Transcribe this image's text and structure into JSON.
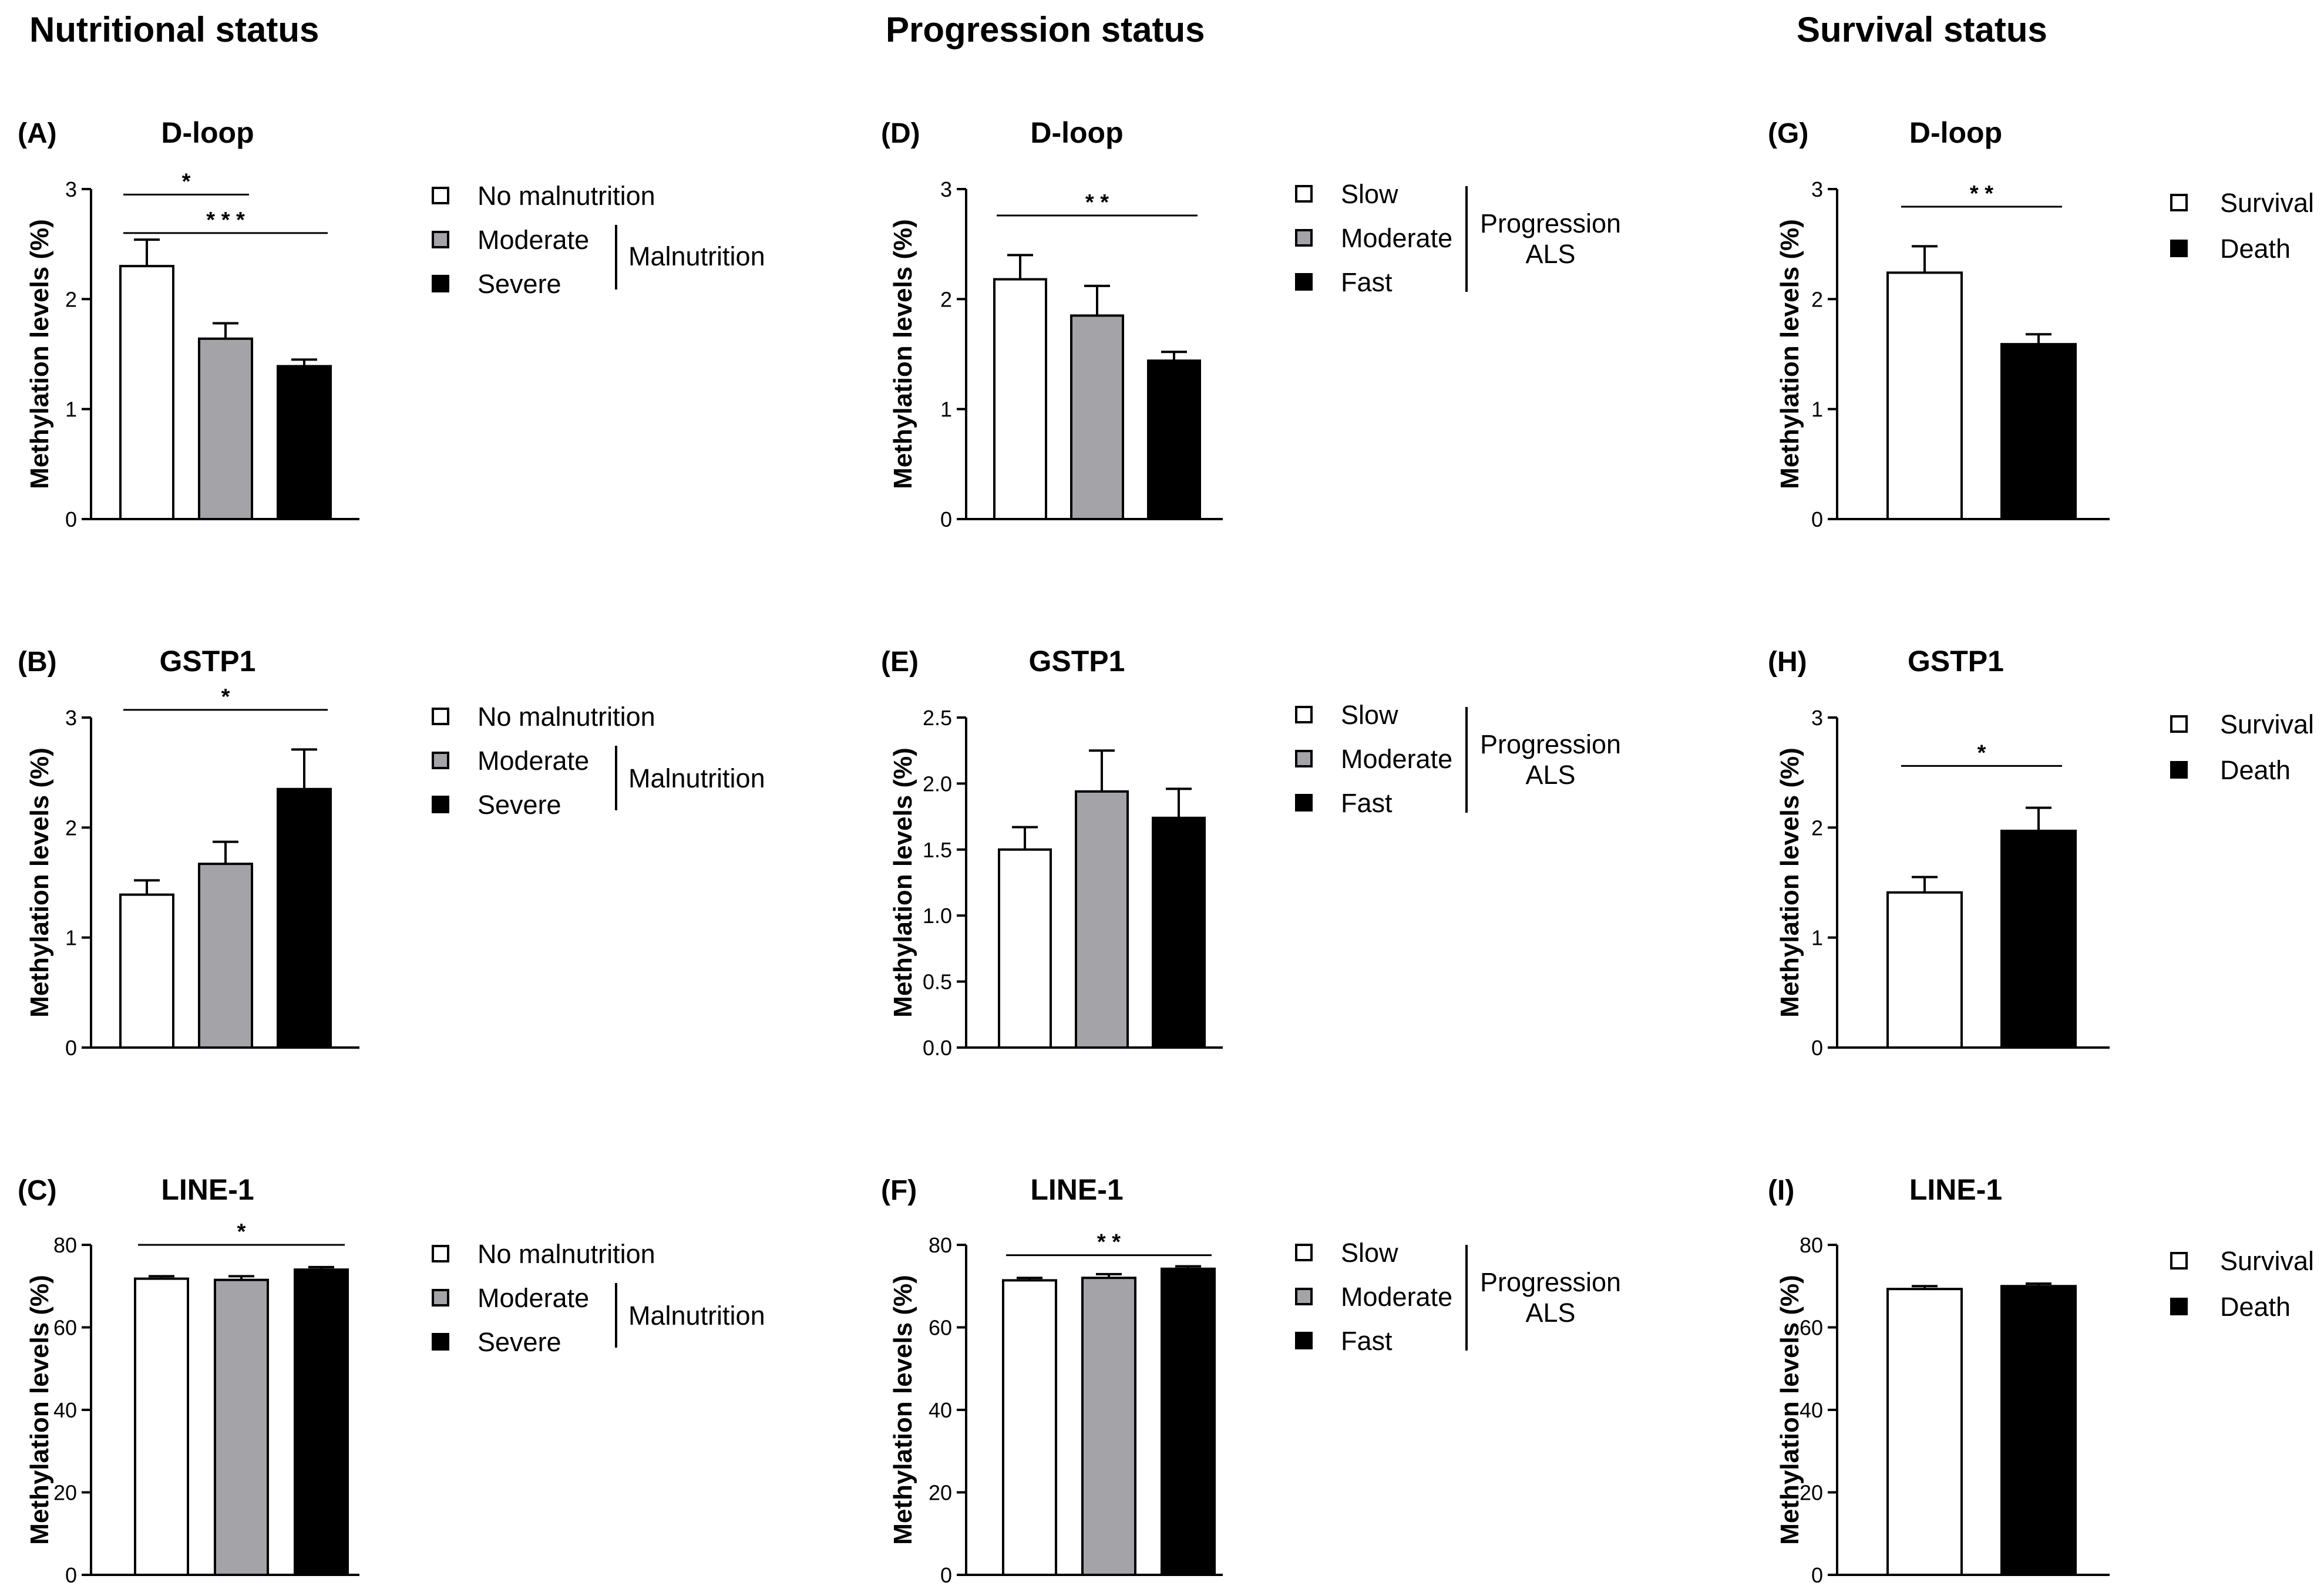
{
  "column_titles": [
    "Nutritional status",
    "Progression status",
    "Survival status"
  ],
  "y_axis_label": "Methylation levels (%)",
  "legends": {
    "nutrition": {
      "items": [
        "No malnutrition",
        "Moderate",
        "Severe"
      ],
      "group_label": "Malnutrition"
    },
    "progression": {
      "items": [
        "Slow",
        "Moderate",
        "Fast"
      ],
      "group_label_line1": "Progression",
      "group_label_line2": "ALS"
    },
    "survival": {
      "items": [
        "Survival",
        "Death"
      ]
    }
  },
  "colors": {
    "white": "#ffffff",
    "gray": "#a3a3a8",
    "black": "#000000"
  },
  "chart_data": [
    {
      "id": "A",
      "letter": "(A)",
      "title": "D-loop",
      "type": "bar",
      "categories": [
        "No malnutrition",
        "Moderate",
        "Severe"
      ],
      "values": [
        2.3,
        1.64,
        1.39
      ],
      "errors": [
        0.24,
        0.14,
        0.06
      ],
      "ylim": [
        0,
        3
      ],
      "ticks": [
        "0",
        "1",
        "2",
        "3"
      ],
      "tick_values": [
        0,
        1,
        2,
        3
      ],
      "significance": [
        {
          "from": 0,
          "to": 1,
          "label": "*",
          "y": 2.95
        },
        {
          "from": 0,
          "to": 2,
          "label": "* * *",
          "y": 2.6
        }
      ]
    },
    {
      "id": "B",
      "letter": "(B)",
      "title": "GSTP1",
      "type": "bar",
      "categories": [
        "No malnutrition",
        "Moderate",
        "Severe"
      ],
      "values": [
        1.39,
        1.67,
        2.35
      ],
      "errors": [
        0.13,
        0.2,
        0.36
      ],
      "ylim": [
        0,
        3
      ],
      "ticks": [
        "0",
        "1",
        "2",
        "3"
      ],
      "tick_values": [
        0,
        1,
        2,
        3
      ],
      "significance": [
        {
          "from": 0,
          "to": 2,
          "label": "*",
          "y": 3.07
        }
      ]
    },
    {
      "id": "C",
      "letter": "(C)",
      "title": "LINE-1",
      "type": "bar",
      "categories": [
        "No malnutrition",
        "Moderate",
        "Severe"
      ],
      "values": [
        71.8,
        71.5,
        74
      ],
      "errors": [
        0.6,
        0.9,
        0.6
      ],
      "ylim": [
        0,
        80
      ],
      "ticks": [
        "0",
        "20",
        "40",
        "60",
        "80"
      ],
      "tick_values": [
        0,
        20,
        40,
        60,
        80
      ],
      "significance": [
        {
          "from": 0,
          "to": 2,
          "label": "*",
          "y": 80
        }
      ]
    },
    {
      "id": "D",
      "letter": "(D)",
      "title": "D-loop",
      "type": "bar",
      "categories": [
        "Slow",
        "Moderate",
        "Fast"
      ],
      "values": [
        2.18,
        1.85,
        1.44
      ],
      "errors": [
        0.22,
        0.27,
        0.08
      ],
      "ylim": [
        0,
        3
      ],
      "ticks": [
        "0",
        "1",
        "2",
        "3"
      ],
      "tick_values": [
        0,
        1,
        2,
        3
      ],
      "significance": [
        {
          "from": 0,
          "to": 2,
          "label": "* *",
          "y": 2.76
        }
      ]
    },
    {
      "id": "E",
      "letter": "(E)",
      "title": "GSTP1",
      "type": "bar",
      "categories": [
        "Slow",
        "Moderate",
        "Fast"
      ],
      "values": [
        1.5,
        1.94,
        1.74
      ],
      "errors": [
        0.17,
        0.31,
        0.22
      ],
      "ylim": [
        0,
        2.5
      ],
      "ticks": [
        "0.0",
        "0.5",
        "1.0",
        "1.5",
        "2.0",
        "2.5"
      ],
      "tick_values": [
        0,
        0.5,
        1,
        1.5,
        2,
        2.5
      ],
      "significance": []
    },
    {
      "id": "F",
      "letter": "(F)",
      "title": "LINE-1",
      "type": "bar",
      "categories": [
        "Slow",
        "Moderate",
        "Fast"
      ],
      "values": [
        71.4,
        72,
        74.2
      ],
      "errors": [
        0.6,
        0.9,
        0.6
      ],
      "ylim": [
        0,
        80
      ],
      "ticks": [
        "0",
        "20",
        "40",
        "60",
        "80"
      ],
      "tick_values": [
        0,
        20,
        40,
        60,
        80
      ],
      "significance": [
        {
          "from": 0,
          "to": 2,
          "label": "* *",
          "y": 77.5
        }
      ]
    },
    {
      "id": "G",
      "letter": "(G)",
      "title": "D-loop",
      "type": "bar",
      "categories": [
        "Survival",
        "Death"
      ],
      "values": [
        2.24,
        1.59
      ],
      "errors": [
        0.24,
        0.09
      ],
      "ylim": [
        0,
        3
      ],
      "ticks": [
        "0",
        "1",
        "2",
        "3"
      ],
      "tick_values": [
        0,
        1,
        2,
        3
      ],
      "significance": [
        {
          "from": 0,
          "to": 1,
          "label": "* *",
          "y": 2.84
        }
      ]
    },
    {
      "id": "H",
      "letter": "(H)",
      "title": "GSTP1",
      "type": "bar",
      "categories": [
        "Survival",
        "Death"
      ],
      "values": [
        1.41,
        1.97
      ],
      "errors": [
        0.14,
        0.21
      ],
      "ylim": [
        0,
        3
      ],
      "ticks": [
        "0",
        "1",
        "2",
        "3"
      ],
      "tick_values": [
        0,
        1,
        2,
        3
      ],
      "significance": [
        {
          "from": 0,
          "to": 1,
          "label": "*",
          "y": 2.56
        }
      ]
    },
    {
      "id": "I",
      "letter": "(I)",
      "title": "LINE-1",
      "type": "bar",
      "categories": [
        "Survival",
        "Death"
      ],
      "values": [
        69.3,
        70
      ],
      "errors": [
        0.7,
        0.6
      ],
      "ylim": [
        0,
        80
      ],
      "ticks": [
        "0",
        "20",
        "40",
        "60",
        "80"
      ],
      "tick_values": [
        0,
        20,
        40,
        60,
        80
      ],
      "significance": []
    }
  ]
}
